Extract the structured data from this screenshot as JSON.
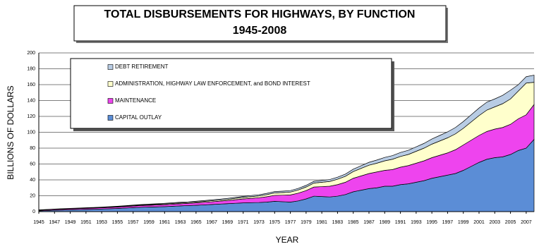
{
  "chart_data": {
    "type": "stacked-area",
    "title": "TOTAL DISBURSEMENTS FOR HIGHWAYS, BY FUNCTION",
    "subtitle": "1945-2008",
    "x_label": "YEAR",
    "y_label": "BILLIONS OF DOLLARS",
    "x": [
      1945,
      1946,
      1947,
      1948,
      1949,
      1950,
      1951,
      1952,
      1953,
      1954,
      1955,
      1956,
      1957,
      1958,
      1959,
      1960,
      1961,
      1962,
      1963,
      1964,
      1965,
      1966,
      1967,
      1968,
      1969,
      1970,
      1971,
      1972,
      1973,
      1974,
      1975,
      1976,
      1977,
      1978,
      1979,
      1980,
      1981,
      1982,
      1983,
      1984,
      1985,
      1986,
      1987,
      1988,
      1989,
      1990,
      1991,
      1992,
      1993,
      1994,
      1995,
      1996,
      1997,
      1998,
      1999,
      2000,
      2001,
      2002,
      2003,
      2004,
      2005,
      2006,
      2007,
      2008
    ],
    "xlim": [
      1945,
      2008
    ],
    "xticks": [
      1945,
      1947,
      1949,
      1951,
      1953,
      1955,
      1957,
      1959,
      1961,
      1963,
      1965,
      1967,
      1969,
      1971,
      1973,
      1975,
      1977,
      1979,
      1981,
      1983,
      1985,
      1987,
      1989,
      1991,
      1993,
      1995,
      1997,
      1999,
      2001,
      2003,
      2005,
      2007
    ],
    "ylim": [
      0,
      200
    ],
    "yticks": [
      0,
      20,
      40,
      60,
      80,
      100,
      120,
      140,
      160,
      180,
      200
    ],
    "grid": true,
    "legend": "upper left",
    "series": [
      {
        "name": "CAPITAL OUTLAY",
        "color": "#5b8dd6",
        "values": [
          1.0,
          1.3,
          1.7,
          2.0,
          2.3,
          2.5,
          2.8,
          3.0,
          3.3,
          3.6,
          4.0,
          4.5,
          5.0,
          5.5,
          5.8,
          6.0,
          6.3,
          6.8,
          7.2,
          7.6,
          8.0,
          8.5,
          9.0,
          9.5,
          10.0,
          10.5,
          11.0,
          11.3,
          11.5,
          12.0,
          13.0,
          12.5,
          12.0,
          13.5,
          16.0,
          19.5,
          19.0,
          18.5,
          19.5,
          21.5,
          25,
          27,
          29,
          30,
          32,
          32,
          34,
          35,
          37,
          39,
          42,
          44,
          46,
          48,
          52,
          57,
          62,
          66,
          68,
          69,
          72,
          77,
          80,
          91
        ]
      },
      {
        "name": "MAINTENANCE",
        "color": "#ee44ee",
        "values": [
          0.8,
          0.9,
          1.0,
          1.1,
          1.2,
          1.3,
          1.4,
          1.5,
          1.6,
          1.7,
          1.8,
          1.9,
          2.0,
          2.1,
          2.2,
          2.4,
          2.5,
          2.6,
          2.7,
          2.8,
          3.0,
          3.2,
          3.4,
          3.7,
          4.0,
          4.5,
          5.0,
          5.5,
          6.0,
          6.8,
          7.5,
          8.2,
          9.0,
          9.8,
          10.5,
          11.5,
          12.5,
          13.5,
          14.5,
          15.5,
          17,
          18,
          19,
          20,
          20,
          21,
          22,
          23,
          24,
          25,
          26,
          27,
          28,
          30,
          32,
          33,
          34,
          35,
          36,
          37,
          38,
          40,
          42,
          44
        ]
      },
      {
        "name": "ADMINISTRATION, HIGHWAY LAW ENFORCEMENT, and BOND INTEREST",
        "color": "#ffffcc",
        "values": [
          0.3,
          0.3,
          0.3,
          0.4,
          0.4,
          0.4,
          0.4,
          0.5,
          0.5,
          0.5,
          0.6,
          0.6,
          0.7,
          0.7,
          0.8,
          0.8,
          0.9,
          0.9,
          1.0,
          1.0,
          1.1,
          1.2,
          1.3,
          1.4,
          1.5,
          1.7,
          1.9,
          2.1,
          2.3,
          2.6,
          3.0,
          3.3,
          3.6,
          4.0,
          4.5,
          5.0,
          5.5,
          6.0,
          6.8,
          7.5,
          8.5,
          9.5,
          10.5,
          11,
          12,
          13,
          13.5,
          14,
          15,
          16,
          17,
          18,
          19,
          20,
          21,
          23,
          25,
          27,
          28,
          30,
          32,
          35,
          40,
          28
        ]
      },
      {
        "name": "DEBT RETIREMENT",
        "color": "#b8cce4",
        "values": [
          0.2,
          0.2,
          0.2,
          0.2,
          0.2,
          0.3,
          0.3,
          0.3,
          0.3,
          0.4,
          0.4,
          0.5,
          0.6,
          0.6,
          0.7,
          0.7,
          0.8,
          0.8,
          0.9,
          0.9,
          1.0,
          1.0,
          1.1,
          1.1,
          1.2,
          1.2,
          1.3,
          1.4,
          1.5,
          1.6,
          1.7,
          1.8,
          1.9,
          2.0,
          2.1,
          2.2,
          2.3,
          2.4,
          2.6,
          2.8,
          3,
          3.3,
          3.6,
          4,
          4.3,
          4.6,
          5,
          5.3,
          5.6,
          6,
          6.5,
          7,
          7.5,
          8,
          8.5,
          9,
          9.5,
          10,
          10,
          10.5,
          11,
          8,
          8,
          9
        ]
      }
    ]
  }
}
